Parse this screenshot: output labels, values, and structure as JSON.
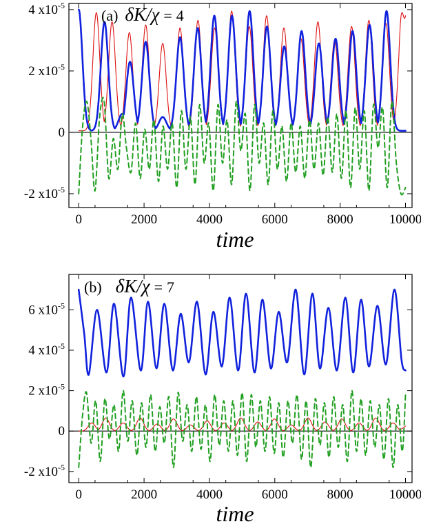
{
  "chart_data": [
    {
      "type": "line",
      "panel": "(a)",
      "annotation": {
        "label": "(a)",
        "param_symbol": "δK/χ",
        "equals": "=",
        "param_value": "4"
      },
      "xlabel": "time",
      "ylabel": "",
      "xlim": [
        -300,
        10200
      ],
      "ylim": [
        -2.45e-05,
        4.2e-05
      ],
      "x_ticks": [
        0,
        2000,
        4000,
        6000,
        8000,
        10000
      ],
      "x_tick_labels": [
        "0",
        "2000",
        "4000",
        "6000",
        "8000",
        "10000"
      ],
      "y_ticks": [
        {
          "value": 4e-05,
          "mantissa": "4 x10",
          "exp": "-5"
        },
        {
          "value": 2e-05,
          "mantissa": "2 x10",
          "exp": "-5"
        },
        {
          "value": 0,
          "mantissa": "0",
          "exp": ""
        },
        {
          "value": -2e-05,
          "mantissa": "-2 x10",
          "exp": "-5"
        }
      ],
      "zero_line": true,
      "series": [
        {
          "color": "#dd1111",
          "width": 1.1,
          "dash": "",
          "peaks": [
            [
              540,
              3.9e-05
            ],
            [
              1020,
              3.6e-05
            ],
            [
              1550,
              3.25e-05
            ],
            [
              2050,
              3.5e-05
            ],
            [
              2570,
              2.9e-05
            ],
            [
              3100,
              3.4e-05
            ],
            [
              3650,
              3.65e-05
            ],
            [
              4160,
              3.4e-05
            ],
            [
              4680,
              3.95e-05
            ],
            [
              5220,
              3.45e-05
            ],
            [
              5750,
              3.8e-05
            ],
            [
              6280,
              3.4e-05
            ],
            [
              6800,
              3.05e-05
            ],
            [
              7320,
              3.6e-05
            ],
            [
              7830,
              3e-05
            ],
            [
              8350,
              3.45e-05
            ],
            [
              8880,
              3.65e-05
            ],
            [
              9400,
              3.55e-05
            ],
            [
              9900,
              4e-05
            ]
          ],
          "peak_width": 150,
          "base": 5e-07,
          "end": [
            10000,
            3.8e-05
          ]
        },
        {
          "color": "#1122dd",
          "width": 2.6,
          "dash": "",
          "peaks": [
            [
              0,
              4e-05
            ],
            [
              790,
              3.6e-05
            ],
            [
              1330,
              6e-06
            ],
            [
              1570,
              2.3e-05
            ],
            [
              2050,
              2.95e-05
            ],
            [
              2570,
              5e-06
            ],
            [
              3100,
              3.1e-05
            ],
            [
              3640,
              3.4e-05
            ],
            [
              4150,
              3.8e-05
            ],
            [
              4690,
              3.8e-05
            ],
            [
              5230,
              3.95e-05
            ],
            [
              5760,
              3.45e-05
            ],
            [
              6290,
              2.8e-05
            ],
            [
              6820,
              3.3e-05
            ],
            [
              7350,
              2.9e-05
            ],
            [
              7860,
              3.05e-05
            ],
            [
              8380,
              3.3e-05
            ],
            [
              8900,
              3.5e-05
            ],
            [
              9420,
              3.95e-05
            ]
          ],
          "peak_width": 160,
          "base": 5e-07,
          "end": [
            10000,
            5e-07
          ]
        },
        {
          "color": "#22a022",
          "width": 2.0,
          "dash": "7,5",
          "curve": "oscillating",
          "x": [
            0,
            120,
            250,
            380,
            500,
            640,
            780,
            920,
            1060,
            1200,
            1330,
            1460,
            1600,
            1740,
            1880,
            2020,
            2160,
            2300,
            2440,
            2580,
            2720,
            2860,
            3000,
            3140,
            3280,
            3420,
            3560,
            3700,
            3840,
            3980,
            4120,
            4260,
            4400,
            4540,
            4680,
            4820,
            4960,
            5100,
            5240,
            5380,
            5520,
            5660,
            5800,
            5940,
            6080,
            6220,
            6360,
            6500,
            6640,
            6780,
            6920,
            7060,
            7200,
            7340,
            7480,
            7620,
            7760,
            7900,
            8040,
            8180,
            8320,
            8460,
            8600,
            8740,
            8880,
            9020,
            9160,
            9300,
            9440,
            9580,
            9720,
            9860,
            10000
          ],
          "y": [
            -2e-05,
            2e-06,
            1e-05,
            -3e-06,
            -1.9e-05,
            5e-06,
            1e-05,
            -1.5e-05,
            -2e-06,
            -1.2e-05,
            6e-06,
            -5e-06,
            -1.3e-05,
            3e-06,
            -1.5e-05,
            1e-06,
            -1.2e-05,
            4e-06,
            -1.6e-05,
            2e-06,
            -1.2e-05,
            3e-06,
            -1.8e-05,
            7e-06,
            -1.2e-05,
            5e-06,
            -1.7e-05,
            9e-06,
            -1e-05,
            3e-06,
            -1.9e-05,
            9e-06,
            -1e-05,
            4e-06,
            -1.7e-05,
            1e-05,
            -6e-06,
            6e-06,
            -1.9e-05,
            9e-06,
            -1e-05,
            3e-06,
            -1.7e-05,
            7e-06,
            -1.2e-05,
            2e-06,
            -1.6e-05,
            3e-06,
            -1.3e-05,
            2e-06,
            -1.5e-05,
            4e-06,
            -1.2e-05,
            3e-06,
            -1.4e-05,
            5e-06,
            -1.3e-05,
            6e-06,
            -1.5e-05,
            7e-06,
            -1.8e-05,
            8e-06,
            -1.2e-05,
            7e-06,
            -1.9e-05,
            9e-06,
            -5e-06,
            8e-06,
            -1.8e-05,
            1e-05,
            -1e-05,
            -2e-05,
            -1.8e-05
          ]
        }
      ]
    },
    {
      "type": "line",
      "panel": "(b)",
      "annotation": {
        "label": "(b)",
        "param_symbol": "δK/χ",
        "equals": "=",
        "param_value": "7"
      },
      "xlabel": "time",
      "ylabel": "",
      "xlim": [
        -300,
        10200
      ],
      "ylim": [
        -2.55e-05,
        7.75e-05
      ],
      "x_ticks": [
        0,
        2000,
        4000,
        6000,
        8000,
        10000
      ],
      "x_tick_labels": [
        "0",
        "2000",
        "4000",
        "6000",
        "8000",
        "10000"
      ],
      "y_ticks": [
        {
          "value": 6e-05,
          "mantissa": "6 x10",
          "exp": "-5"
        },
        {
          "value": 4e-05,
          "mantissa": "4 x10",
          "exp": "-5"
        },
        {
          "value": 2e-05,
          "mantissa": "2 x10",
          "exp": "-5"
        },
        {
          "value": 0,
          "mantissa": "0",
          "exp": ""
        },
        {
          "value": -2e-05,
          "mantissa": "-2 x10",
          "exp": "-5"
        }
      ],
      "zero_line": true,
      "series": [
        {
          "color": "#1122dd",
          "width": 2.6,
          "dash": "",
          "curve": "oscillating",
          "x": [
            0,
            170,
            310,
            560,
            850,
            1080,
            1370,
            1600,
            1900,
            2120,
            2380,
            2620,
            2880,
            3120,
            3370,
            3620,
            3880,
            4120,
            4380,
            4620,
            4880,
            5120,
            5380,
            5620,
            5880,
            6120,
            6380,
            6640,
            6900,
            7150,
            7380,
            7640,
            7900,
            8160,
            8400,
            8640,
            8880,
            9140,
            9400,
            9660,
            9880,
            10000
          ],
          "y": [
            7e-05,
            4.8e-05,
            2.8e-05,
            6e-05,
            2.9e-05,
            6.3e-05,
            2.7e-05,
            6.6e-05,
            3e-05,
            6.4e-05,
            3.1e-05,
            6.3e-05,
            3e-05,
            5.8e-05,
            3.4e-05,
            6.4e-05,
            2.8e-05,
            5.9e-05,
            3.2e-05,
            6.6e-05,
            3e-05,
            6.8e-05,
            2.9e-05,
            6.5e-05,
            3.1e-05,
            5.9e-05,
            3.4e-05,
            7e-05,
            2.8e-05,
            6.8e-05,
            3.1e-05,
            6.1e-05,
            3e-05,
            6.6e-05,
            2.9e-05,
            6.5e-05,
            3.2e-05,
            6.2e-05,
            3.3e-05,
            7e-05,
            3.5e-05,
            3e-05
          ]
        },
        {
          "color": "#dd1111",
          "width": 1.1,
          "dash": "",
          "peaks": [
            [
              400,
              4e-06
            ],
            [
              830,
              6.5e-06
            ],
            [
              1360,
              4e-06
            ],
            [
              1880,
              6.5e-06
            ],
            [
              2400,
              3.5e-06
            ],
            [
              2900,
              6e-06
            ],
            [
              3420,
              3e-06
            ],
            [
              3930,
              5e-06
            ],
            [
              4450,
              4e-06
            ],
            [
              4960,
              6.5e-06
            ],
            [
              5480,
              4.5e-06
            ],
            [
              5990,
              6e-06
            ],
            [
              6500,
              3e-06
            ],
            [
              7020,
              6.5e-06
            ],
            [
              7540,
              4.5e-06
            ],
            [
              8050,
              6e-06
            ],
            [
              8580,
              4e-06
            ],
            [
              9090,
              6.5e-06
            ],
            [
              9620,
              4e-06
            ]
          ],
          "peak_width": 150,
          "base": 0.0,
          "end": [
            10000,
            2.5e-06
          ]
        },
        {
          "color": "#22a022",
          "width": 2.0,
          "dash": "7,5",
          "curve": "oscillating",
          "x": [
            0,
            120,
            240,
            380,
            520,
            660,
            800,
            940,
            1080,
            1220,
            1360,
            1500,
            1640,
            1780,
            1920,
            2060,
            2200,
            2340,
            2480,
            2620,
            2760,
            2900,
            3040,
            3180,
            3320,
            3460,
            3600,
            3740,
            3880,
            4020,
            4160,
            4300,
            4440,
            4580,
            4720,
            4860,
            5000,
            5140,
            5280,
            5420,
            5560,
            5700,
            5840,
            5980,
            6120,
            6260,
            6400,
            6540,
            6680,
            6820,
            6960,
            7100,
            7240,
            7380,
            7520,
            7660,
            7800,
            7940,
            8080,
            8220,
            8360,
            8500,
            8640,
            8780,
            8920,
            9060,
            9200,
            9340,
            9480,
            9620,
            9760,
            9900,
            10000
          ],
          "y": [
            -1.8e-05,
            8e-06,
            1.9e-05,
            -6e-06,
            1.5e-05,
            -1.5e-05,
            1.6e-05,
            -4e-06,
            1.3e-05,
            -1e-05,
            2e-05,
            -5e-06,
            1.5e-05,
            -1.2e-05,
            1.4e-05,
            -8e-06,
            1.8e-05,
            -1e-05,
            1.2e-05,
            -6e-06,
            1.7e-05,
            -1.8e-05,
            1.9e-05,
            -5e-06,
            1.3e-05,
            -1e-05,
            1.7e-05,
            -9e-06,
            1.3e-05,
            -1.5e-05,
            1.8e-05,
            -7e-06,
            1.5e-05,
            -1e-05,
            1.5e-05,
            -1.2e-05,
            1.9e-05,
            -1.5e-05,
            1.8e-05,
            -8e-06,
            1.5e-05,
            -1e-05,
            1.7e-05,
            -1.1e-05,
            1.4e-05,
            -1.3e-05,
            1.5e-05,
            -6e-06,
            1.8e-05,
            -1.4e-05,
            1.5e-05,
            -1.8e-05,
            1.6e-05,
            -7e-06,
            1.4e-05,
            -1.3e-05,
            1.7e-05,
            -8e-06,
            1.3e-05,
            -1.5e-05,
            2e-05,
            -1e-05,
            1.6e-05,
            -1.2e-05,
            1.5e-05,
            -8e-06,
            1.3e-05,
            -1.4e-05,
            1.6e-05,
            -1.8e-05,
            1.3e-05,
            -1e-05,
            1.8e-05
          ]
        }
      ]
    }
  ]
}
